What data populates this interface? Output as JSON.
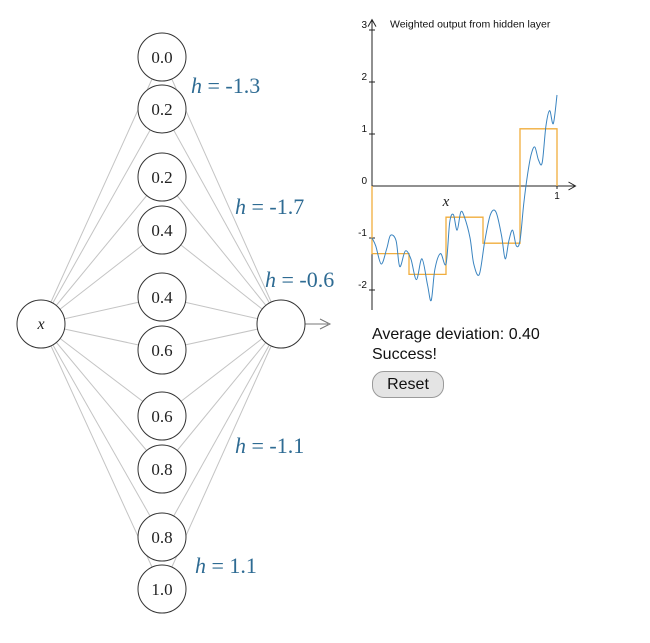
{
  "network": {
    "input_label": "x",
    "hidden_neurons": [
      "0.0",
      "0.2",
      "0.2",
      "0.4",
      "0.4",
      "0.6",
      "0.6",
      "0.8",
      "0.8",
      "1.0"
    ],
    "h_prefix": "h",
    "h_values": [
      "= -1.3",
      "= -1.7",
      "= -0.6",
      "= -1.1",
      "= 1.1"
    ]
  },
  "chart_data": {
    "type": "line",
    "title": "Weighted output from hidden layer",
    "x_axis_label": "x",
    "xlim": [
      0,
      1
    ],
    "ylim": [
      -2.3,
      3.2
    ],
    "x_ticks": [
      "1"
    ],
    "y_ticks": [
      "3",
      "2",
      "1",
      "0",
      "-1",
      "-2"
    ],
    "colors": {
      "step": "#f0ad3d",
      "curve": "#3a84c0"
    },
    "series": [
      {
        "type": "step",
        "x": [
          0.0,
          0.2,
          0.2,
          0.4,
          0.4,
          0.6,
          0.6,
          0.8,
          0.8,
          1.0
        ],
        "y": [
          -1.3,
          -1.3,
          -1.7,
          -1.7,
          -0.6,
          -0.6,
          -1.1,
          -1.1,
          1.1,
          1.1
        ]
      },
      {
        "type": "line",
        "x": [
          0.0,
          0.02,
          0.05,
          0.08,
          0.1,
          0.13,
          0.15,
          0.18,
          0.21,
          0.24,
          0.27,
          0.3,
          0.32,
          0.34,
          0.37,
          0.4,
          0.42,
          0.44,
          0.46,
          0.48,
          0.5,
          0.53,
          0.55,
          0.58,
          0.61,
          0.64,
          0.67,
          0.7,
          0.72,
          0.74,
          0.76,
          0.78,
          0.8,
          0.82,
          0.84,
          0.86,
          0.88,
          0.9,
          0.92,
          0.94,
          0.96,
          0.98,
          1.0
        ],
        "y": [
          -1.0,
          -1.15,
          -1.5,
          -1.2,
          -0.95,
          -1.05,
          -1.55,
          -1.25,
          -1.4,
          -1.8,
          -1.4,
          -1.9,
          -2.2,
          -1.6,
          -1.3,
          -1.5,
          -0.7,
          -0.55,
          -0.85,
          -0.5,
          -0.6,
          -1.0,
          -1.5,
          -1.7,
          -1.05,
          -0.55,
          -0.5,
          -0.95,
          -1.4,
          -1.05,
          -0.85,
          -1.15,
          -1.05,
          -0.35,
          0.2,
          0.6,
          0.75,
          0.5,
          0.45,
          1.15,
          1.45,
          1.2,
          1.75
        ]
      }
    ]
  },
  "info": {
    "deviation_text": "Average deviation: 0.40",
    "status_text": "Success!"
  },
  "controls": {
    "reset_label": "Reset"
  }
}
